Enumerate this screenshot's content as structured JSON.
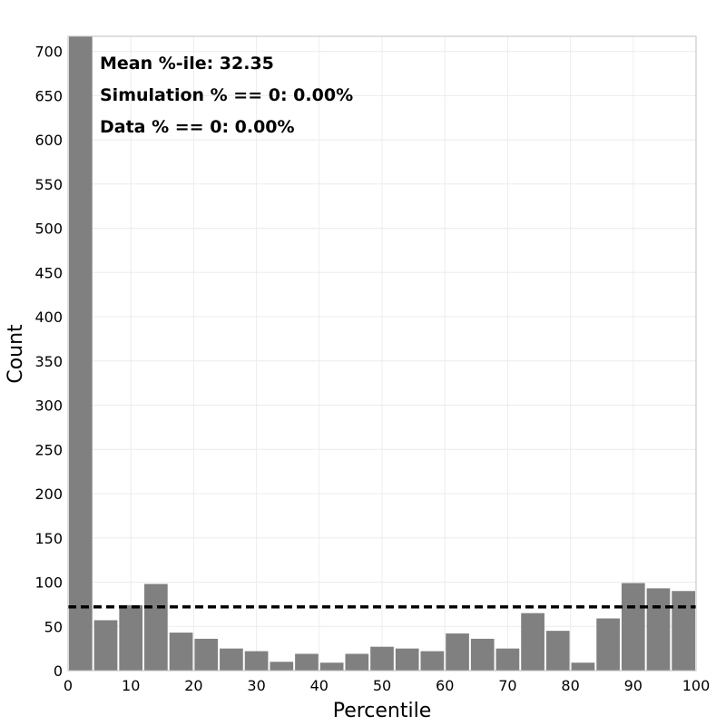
{
  "chart_data": {
    "type": "bar",
    "xlabel": "Percentile",
    "ylabel": "Count",
    "xlim": [
      0,
      100
    ],
    "ylim": [
      0,
      717
    ],
    "x_ticks": [
      0,
      10,
      20,
      30,
      40,
      50,
      60,
      70,
      80,
      90,
      100
    ],
    "y_ticks": [
      0,
      50,
      100,
      150,
      200,
      250,
      300,
      350,
      400,
      450,
      500,
      550,
      600,
      650,
      700
    ],
    "grid": true,
    "bar_color": "#808080",
    "bin_width": 4,
    "bins": [
      {
        "x0": 0,
        "value": 717
      },
      {
        "x0": 4,
        "value": 57
      },
      {
        "x0": 8,
        "value": 74
      },
      {
        "x0": 12,
        "value": 98
      },
      {
        "x0": 16,
        "value": 43
      },
      {
        "x0": 20,
        "value": 36
      },
      {
        "x0": 24,
        "value": 25
      },
      {
        "x0": 28,
        "value": 22
      },
      {
        "x0": 32,
        "value": 10
      },
      {
        "x0": 36,
        "value": 19
      },
      {
        "x0": 40,
        "value": 9
      },
      {
        "x0": 44,
        "value": 19
      },
      {
        "x0": 48,
        "value": 27
      },
      {
        "x0": 52,
        "value": 25
      },
      {
        "x0": 56,
        "value": 22
      },
      {
        "x0": 60,
        "value": 42
      },
      {
        "x0": 64,
        "value": 36
      },
      {
        "x0": 68,
        "value": 25
      },
      {
        "x0": 72,
        "value": 65
      },
      {
        "x0": 76,
        "value": 45
      },
      {
        "x0": 80,
        "value": 9
      },
      {
        "x0": 84,
        "value": 59
      },
      {
        "x0": 88,
        "value": 99
      },
      {
        "x0": 92,
        "value": 93
      },
      {
        "x0": 96,
        "value": 90
      }
    ],
    "reference_line": {
      "value": 72,
      "style": "dashed",
      "color": "#000000"
    },
    "annotations": [
      "Mean %-ile: 32.35",
      "Simulation % == 0: 0.00%",
      "Data % == 0: 0.00%"
    ]
  }
}
